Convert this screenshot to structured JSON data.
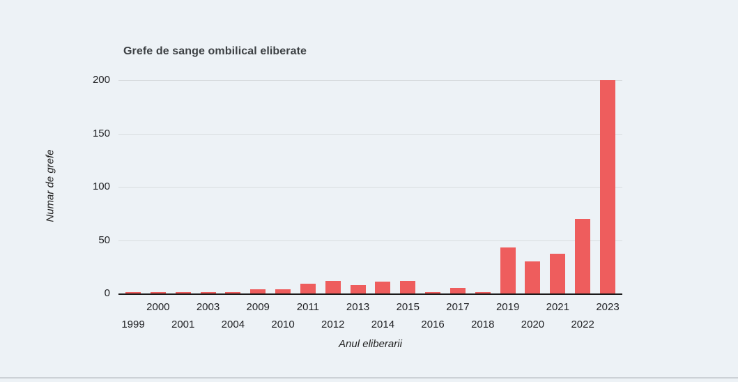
{
  "chart_data": {
    "type": "bar",
    "title": "Grefe de sange ombilical eliberate",
    "xlabel": "Anul eliberarii",
    "ylabel": "Numar de grefe",
    "categories": [
      "1999",
      "2000",
      "2001",
      "2003",
      "2004",
      "2009",
      "2010",
      "2011",
      "2012",
      "2013",
      "2014",
      "2015",
      "2016",
      "2017",
      "2018",
      "2019",
      "2020",
      "2021",
      "2022",
      "2023"
    ],
    "values": [
      1,
      1,
      1,
      1,
      1,
      4,
      4,
      9,
      12,
      8,
      11,
      12,
      1,
      5,
      1,
      43,
      30,
      37,
      70,
      200
    ],
    "y_ticks": [
      0,
      50,
      100,
      150,
      200
    ],
    "ylim": [
      0,
      200
    ],
    "grid": true,
    "legend": "none",
    "x_label_layout": "staggered-two-rows",
    "colors": {
      "bar": "#ee5d5d",
      "background": "#edf2f6",
      "gridline": "#d8dcdf",
      "axis_line": "#1b1b1b",
      "title_text": "#3c4043",
      "tick_text": "#202124",
      "axis_title_text": "#222222",
      "divider": "#ccd1d6"
    }
  }
}
